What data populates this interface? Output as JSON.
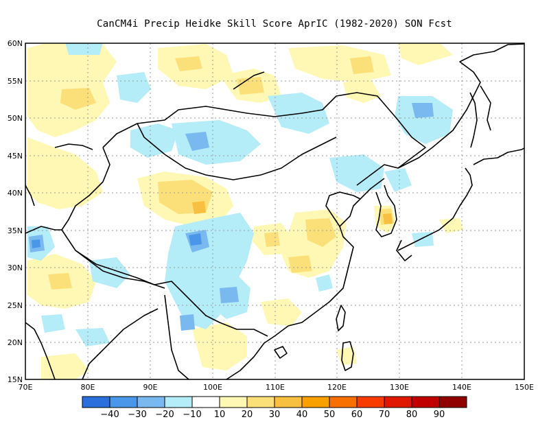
{
  "title": "CanCM4i Precip Heidke Skill Score AprIC (1982-2020) SON Fcst",
  "map": {
    "lon_range": [
      70,
      150
    ],
    "lat_range": [
      15,
      60
    ],
    "grid": "dotted",
    "lon_labels": [
      "70E",
      "80E",
      "90E",
      "100E",
      "110E",
      "120E",
      "130E",
      "140E",
      "150E"
    ],
    "lat_labels": [
      "15N",
      "20N",
      "25N",
      "30N",
      "35N",
      "40N",
      "45N",
      "50N",
      "55N",
      "60N"
    ]
  },
  "colorbar": {
    "colors": [
      "#2a6fdc",
      "#4a96e8",
      "#7ab8f0",
      "#b4ecf8",
      "#ffffff",
      "#fff8b4",
      "#fbe07a",
      "#f8c040",
      "#f8a000",
      "#f87000",
      "#f83c00",
      "#e01800",
      "#c00000",
      "#900000"
    ],
    "labels": [
      "-40",
      "-30",
      "-20",
      "-10",
      "10",
      "20",
      "30",
      "40",
      "50",
      "60",
      "70",
      "80",
      "90"
    ]
  },
  "colors": {
    "neg_light": "#b4ecf8",
    "neg_mid": "#7ab8f0",
    "neg_dark": "#4a96e8",
    "pos_light": "#fff8b4",
    "pos_mid": "#fbe07a",
    "pos_dark": "#f8c040",
    "coast": "#000000"
  }
}
